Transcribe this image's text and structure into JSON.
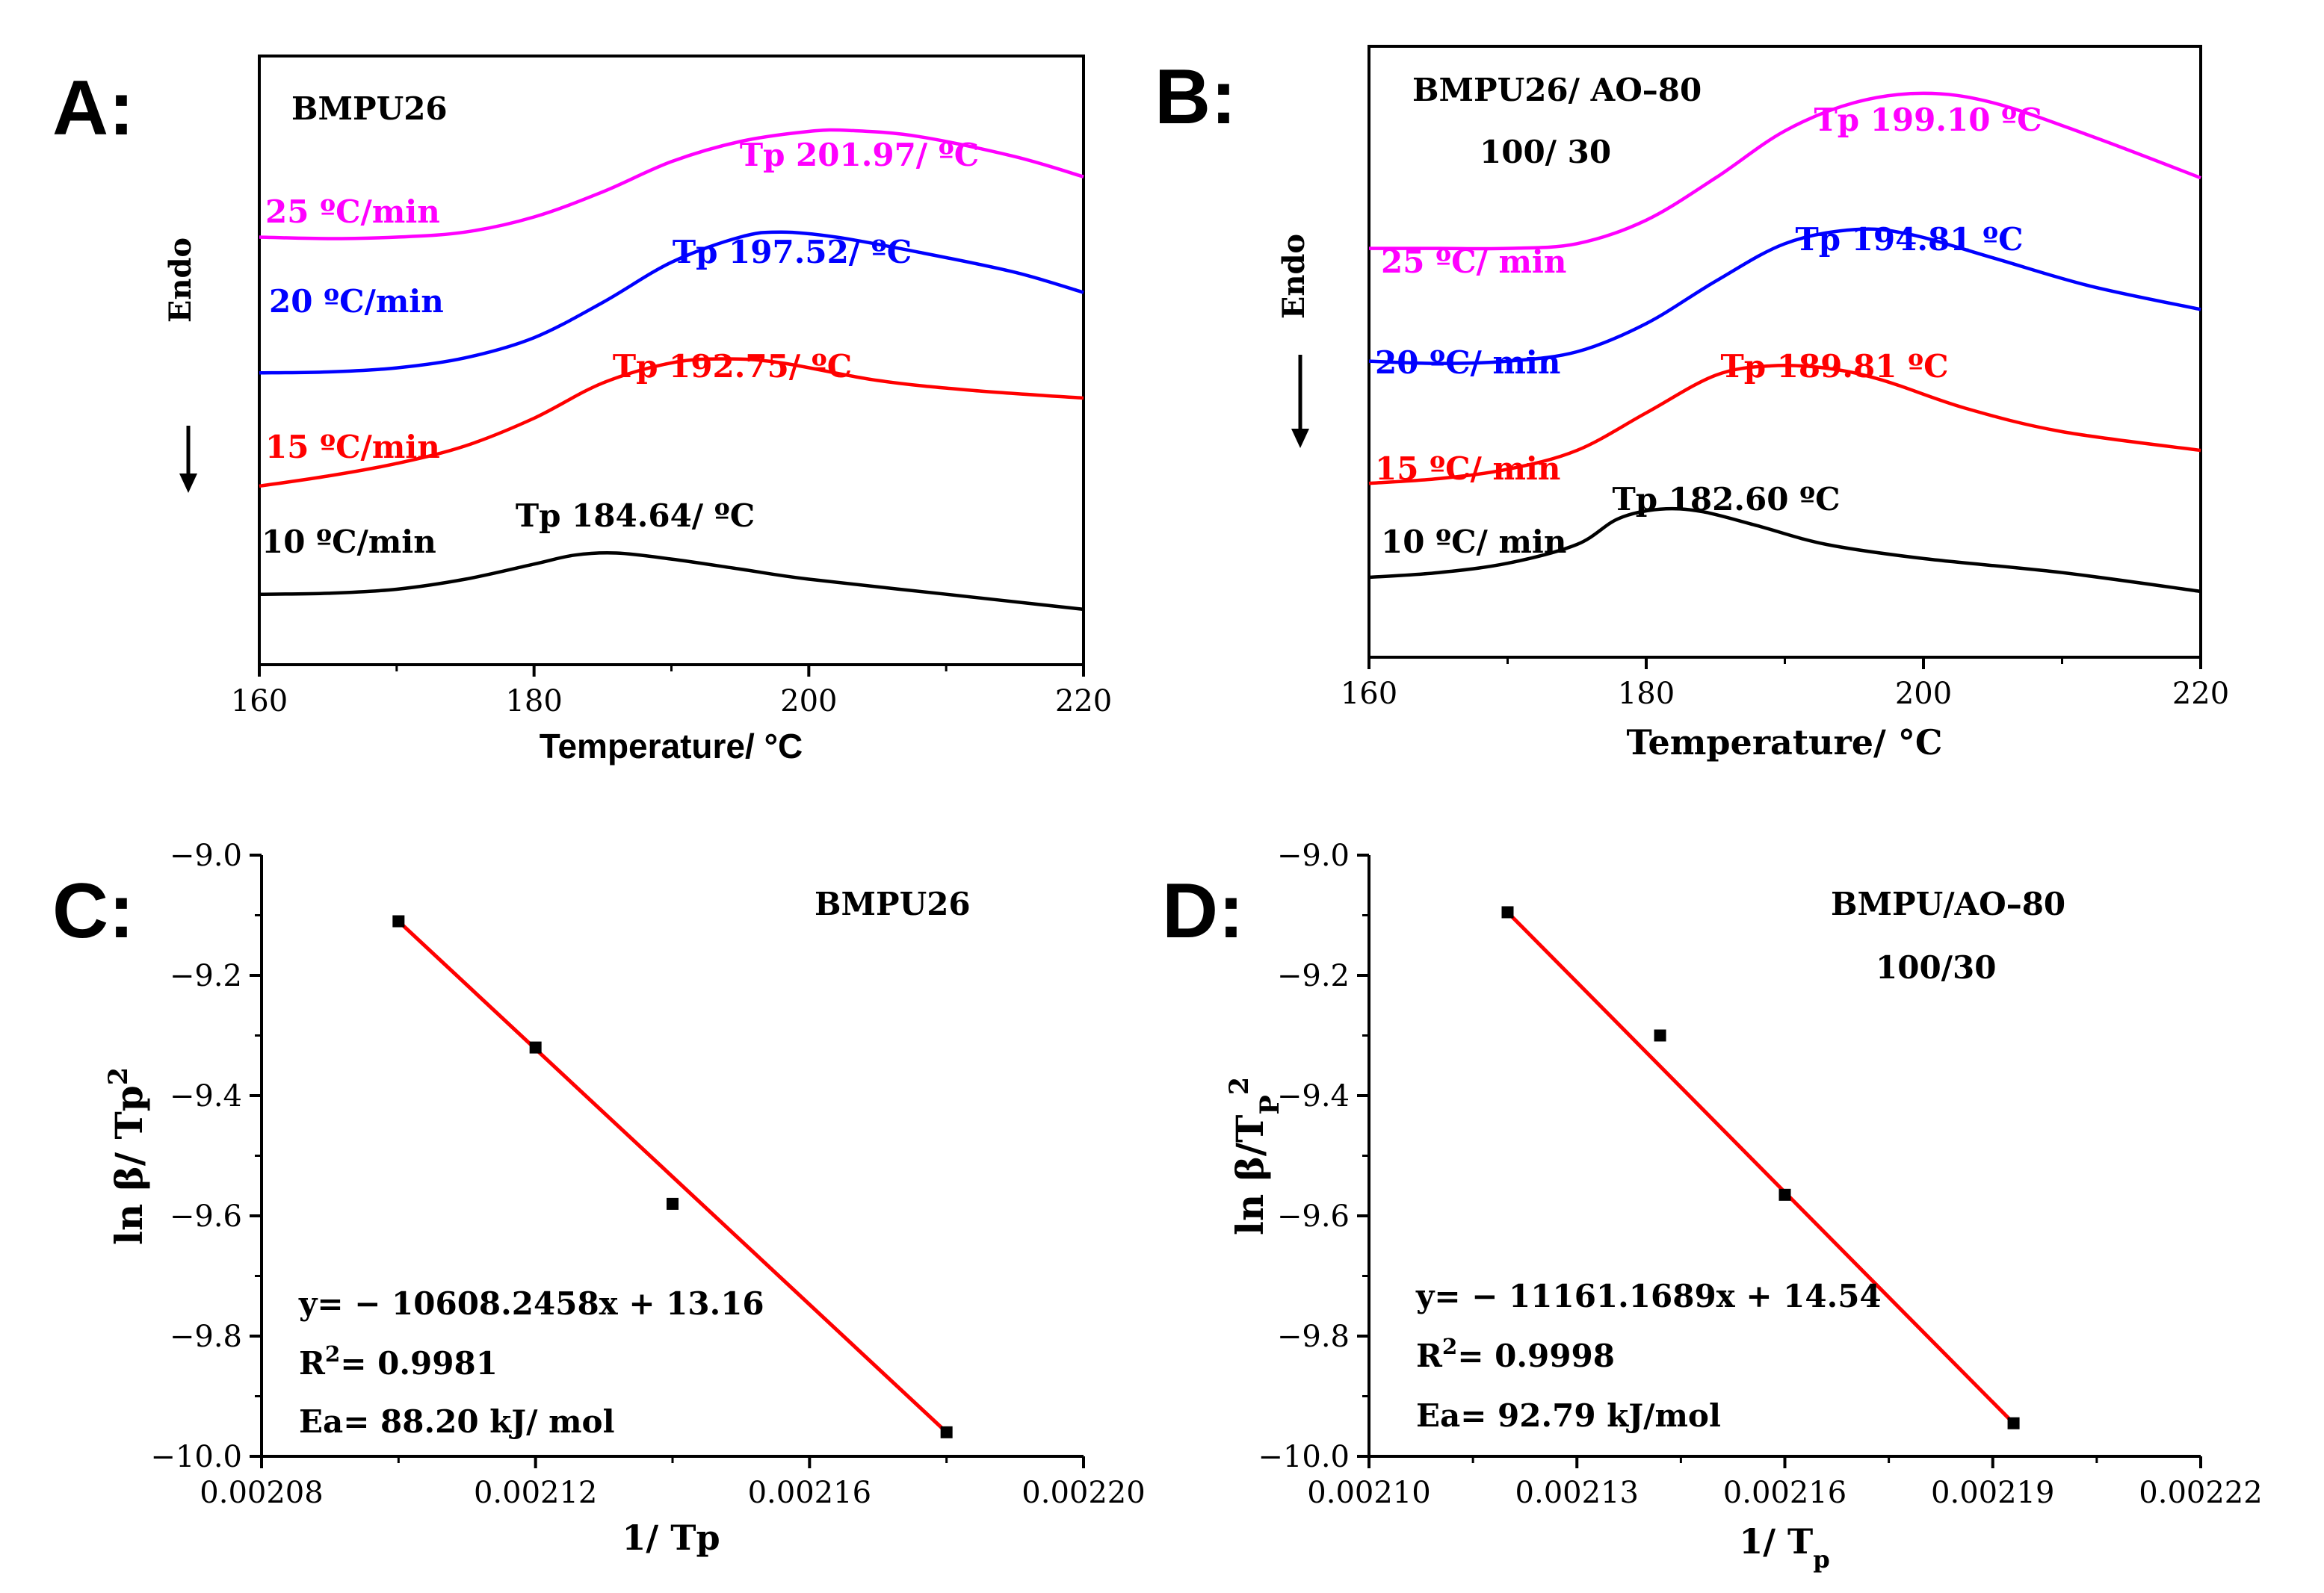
{
  "chart_data": [
    {
      "panel": "A:",
      "type": "line",
      "sample_label": [
        "BMPU26"
      ],
      "xlabel": "Temperature/ °C",
      "ylabel": "Endo",
      "xlim": [
        160,
        220
      ],
      "xticks": [
        160,
        180,
        200,
        220
      ],
      "series": [
        {
          "name": "10 ºC/min",
          "color": "#000000",
          "peak_label": "Tp 184.64/ ºC",
          "x": [
            160,
            165,
            170,
            175,
            180,
            183,
            186,
            190,
            195,
            200,
            210,
            220
          ],
          "y": [
            0.8,
            0.82,
            0.9,
            1.1,
            1.4,
            1.58,
            1.62,
            1.5,
            1.3,
            1.1,
            0.8,
            0.5
          ]
        },
        {
          "name": "15 ºC/min",
          "color": "#ff0000",
          "peak_label": "Tp 192.75/ ºC",
          "x": [
            160,
            165,
            170,
            175,
            180,
            185,
            190,
            194,
            198,
            205,
            212,
            220
          ],
          "y": [
            2.95,
            3.15,
            3.4,
            3.75,
            4.3,
            5.0,
            5.4,
            5.48,
            5.4,
            5.05,
            4.85,
            4.7
          ]
        },
        {
          "name": "20 ºC/min",
          "color": "#0000ff",
          "peak_label": "Tp 197.52/ ºC",
          "x": [
            160,
            165,
            170,
            175,
            180,
            185,
            190,
            195,
            198,
            202,
            208,
            215,
            220
          ],
          "y": [
            5.2,
            5.22,
            5.3,
            5.5,
            5.9,
            6.6,
            7.4,
            7.9,
            8.0,
            7.9,
            7.6,
            7.2,
            6.8
          ]
        },
        {
          "name": "25 ºC/min",
          "color": "#ff00ff",
          "peak_label": "Tp 201.97/ ºC",
          "x": [
            160,
            165,
            170,
            175,
            180,
            185,
            190,
            195,
            200,
            203,
            208,
            215,
            220
          ],
          "y": [
            7.9,
            7.87,
            7.9,
            8.0,
            8.3,
            8.8,
            9.4,
            9.8,
            10.0,
            10.02,
            9.9,
            9.5,
            9.1
          ]
        }
      ]
    },
    {
      "panel": "B:",
      "type": "line",
      "sample_label": [
        "BMPU26/ AO–80",
        "100/ 30"
      ],
      "xlabel": "Temperature/ °C",
      "ylabel": "Endo",
      "xlim": [
        160,
        220
      ],
      "xticks": [
        160,
        180,
        200,
        220
      ],
      "series": [
        {
          "name": "10 ºC/ min",
          "color": "#000000",
          "peak_label": "Tp 182.60 ºC",
          "x": [
            160,
            165,
            170,
            175,
            178,
            181,
            184,
            188,
            193,
            200,
            210,
            220
          ],
          "y": [
            1.1,
            1.2,
            1.4,
            1.8,
            2.35,
            2.55,
            2.5,
            2.2,
            1.8,
            1.5,
            1.2,
            0.8
          ]
        },
        {
          "name": "15 ºC/ min",
          "color": "#ff0000",
          "peak_label": "Tp 189.81 ºC",
          "x": [
            160,
            165,
            170,
            175,
            180,
            185,
            189,
            193,
            197,
            203,
            210,
            220
          ],
          "y": [
            3.1,
            3.2,
            3.4,
            3.8,
            4.6,
            5.4,
            5.6,
            5.55,
            5.3,
            4.7,
            4.2,
            3.8
          ]
        },
        {
          "name": "20 ºC/ min",
          "color": "#0000ff",
          "peak_label": "Tp 194.81 ºC",
          "x": [
            160,
            165,
            170,
            175,
            180,
            185,
            190,
            195,
            199,
            205,
            212,
            220
          ],
          "y": [
            5.7,
            5.65,
            5.7,
            5.9,
            6.5,
            7.4,
            8.2,
            8.5,
            8.4,
            7.9,
            7.3,
            6.8
          ]
        },
        {
          "name": "25 ºC/ min",
          "color": "#ff00ff",
          "peak_label": "Tp 199.10 ºC",
          "x": [
            160,
            165,
            170,
            175,
            180,
            185,
            190,
            195,
            200,
            205,
            212,
            220
          ],
          "y": [
            8.1,
            8.1,
            8.1,
            8.2,
            8.7,
            9.6,
            10.6,
            11.2,
            11.4,
            11.2,
            10.5,
            9.6
          ]
        }
      ]
    },
    {
      "panel": "C:",
      "type": "scatter",
      "sample_label": [
        "BMPU26"
      ],
      "xlabel": "1/ Tp",
      "ylabel": "ln β/ Tp",
      "ylabel_sup": "2",
      "xlim": [
        0.00208,
        0.0022
      ],
      "ylim": [
        -10.0,
        -9.0
      ],
      "xticks": [
        0.00208,
        0.00212,
        0.00216,
        0.0022
      ],
      "xtick_labels": [
        "0.00208",
        "0.00212",
        "0.00216",
        "0.00220"
      ],
      "yticks": [
        -10.0,
        -9.8,
        -9.6,
        -9.4,
        -9.2,
        -9.0
      ],
      "ytick_labels": [
        "−10.0",
        "−9.8",
        "−9.6",
        "−9.4",
        "−9.2",
        "−9.0"
      ],
      "points": {
        "x": [
          0.0021,
          0.00212,
          0.00214,
          0.00218
        ],
        "y": [
          -9.11,
          -9.32,
          -9.58,
          -9.96
        ]
      },
      "fit": {
        "slope": -10608.2458,
        "intercept": 13.16,
        "color": "#ff0000"
      },
      "annotations": {
        "equation": "y= − 10608.2458x + 13.16",
        "r2": "R",
        "r2_sup": "2",
        "r2_value": "= 0.9981",
        "ea": "Ea= 88.20 kJ/ mol"
      }
    },
    {
      "panel": "D:",
      "type": "scatter",
      "sample_label": [
        "BMPU/AO–80",
        "100/30"
      ],
      "xlabel": "1/ T",
      "xlabel_sub": "p",
      "ylabel": "ln β/T",
      "ylabel_sub": "P",
      "ylabel_sup": "2",
      "xlim": [
        0.0021,
        0.00222
      ],
      "ylim": [
        -10.0,
        -9.0
      ],
      "xticks": [
        0.0021,
        0.00213,
        0.00216,
        0.00219,
        0.00222
      ],
      "xtick_labels": [
        "0.00210",
        "0.00213",
        "0.00216",
        "0.00219",
        "0.00222"
      ],
      "yticks": [
        -10.0,
        -9.8,
        -9.6,
        -9.4,
        -9.2,
        -9.0
      ],
      "ytick_labels": [
        "−10.0",
        "−9.8",
        "−9.6",
        "−9.4",
        "−9.2",
        "−9.0"
      ],
      "points": {
        "x": [
          0.00212,
          0.002142,
          0.00216,
          0.002193
        ],
        "y": [
          -9.095,
          -9.3,
          -9.565,
          -9.945
        ]
      },
      "fit": {
        "slope": -11161.1689,
        "intercept": 14.54,
        "color": "#ff0000"
      },
      "annotations": {
        "equation": "y= − 11161.1689x + 14.54",
        "r2": "R",
        "r2_sup": "2",
        "r2_value": "= 0.9998",
        "ea": "Ea= 92.79 kJ/mol"
      }
    }
  ]
}
